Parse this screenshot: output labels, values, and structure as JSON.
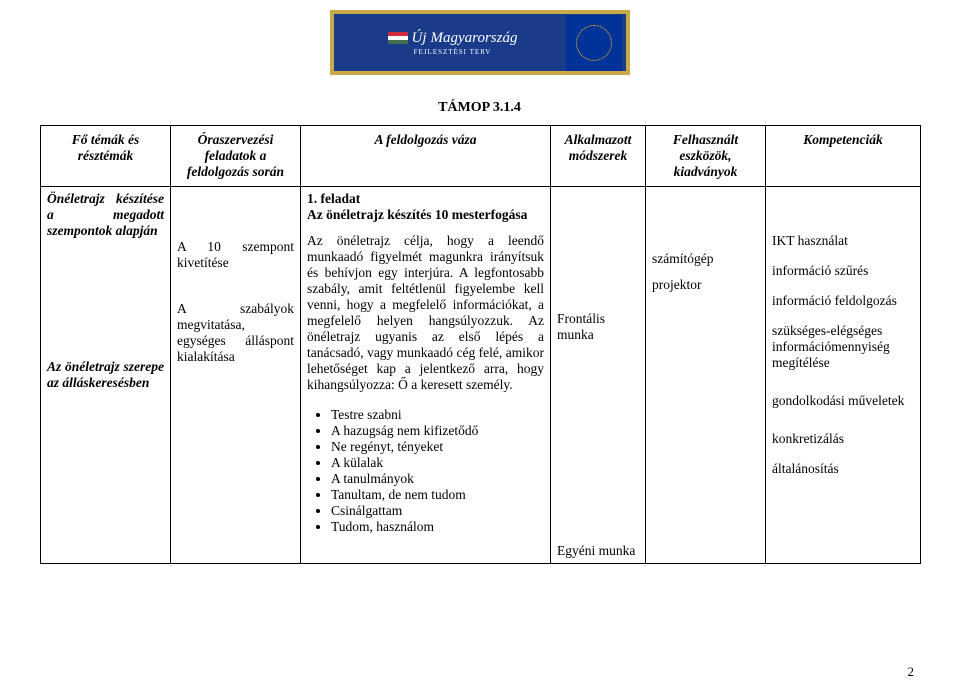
{
  "banner": {
    "title_pre": "Új",
    "title_main": "Magyarország",
    "subtitle": "FEJLESZTÉSI TERV",
    "flag_colors": [
      "#cd2a3e",
      "#ffffff",
      "#436f4d"
    ]
  },
  "page_code": "TÁMOP 3.1.4",
  "headers": {
    "topics": "Fő témák és résztémák",
    "tasks": "Óraszervezési feladatok a feldolgozás során",
    "process": "A feldolgozás váza",
    "methods": "Alkalmazott módszerek",
    "tools": "Felhasznált eszközök, kiadványok",
    "comp": "Kompetenciák"
  },
  "row": {
    "topics_1": "Önéletrajz készítése a megadott szempontok alapján",
    "topics_2": "Az önéletrajz szerepe az álláskeresésben",
    "tasks_1": "A 10 szempont kivetítése",
    "tasks_2": "A szabályok megvitatása, egységes álláspont kialakítása",
    "process_heading": "1. feladat",
    "process_sub": "Az önéletrajz készítés 10 mesterfogása",
    "process_para": "Az önéletrajz célja, hogy a leendő munkaadó figyelmét magunkra irányítsuk és behívjon egy interjúra. A legfontosabb szabály, amit feltétlenül figyelembe kell venni, hogy a megfelelő információkat, a megfelelő helyen hangsúlyozzuk. Az önéletrajz ugyanis az első lépés a tanácsadó, vagy munkaadó cég felé, amikor lehetőséget kap a jelentkező arra, hogy kihangsúlyozza: Ő a keresett személy.",
    "process_bullets": [
      "Testre szabni",
      "A hazugság nem kifizetődő",
      "Ne regényt, tényeket",
      "A külalak",
      "A tanulmányok",
      "Tanultam, de nem tudom",
      "Csinálgattam",
      "Tudom, használom"
    ],
    "methods_1": "Frontális munka",
    "methods_2": "Egyéni munka",
    "tools_1": "számítógép",
    "tools_2": "projektor",
    "comp": [
      "IKT használat",
      "információ szűrés",
      "információ feldolgozás",
      "szükséges-elégséges információmennyiség megítélése",
      "gondolkodási műveletek",
      "konkretizálás",
      "általánosítás"
    ]
  },
  "page_number": "2"
}
